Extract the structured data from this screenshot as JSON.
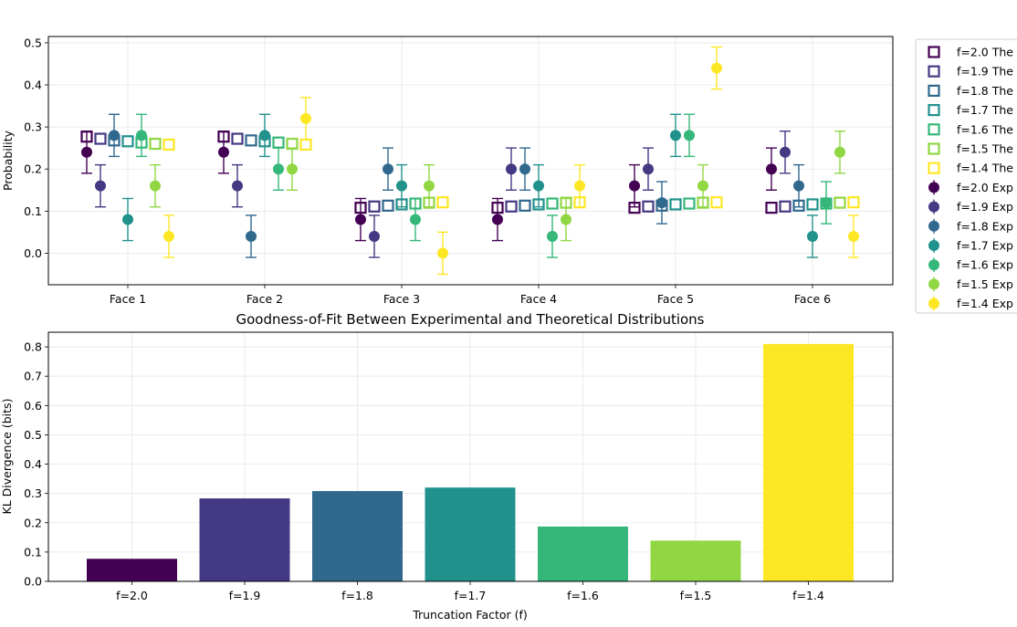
{
  "colors": {
    "f=2.0": "#440154",
    "f=1.9": "#443983",
    "f=1.8": "#31688e",
    "f=1.7": "#21918c",
    "f=1.6": "#35b779",
    "f=1.5": "#90d743",
    "f=1.4": "#fde725"
  },
  "chart_data": [
    {
      "type": "scatter",
      "title": "",
      "xlabel": "",
      "ylabel": "Probability",
      "categories": [
        "Face 1",
        "Face 2",
        "Face 3",
        "Face 4",
        "Face 5",
        "Face 6"
      ],
      "ylim": [
        -0.075,
        0.515
      ],
      "yticks": [
        "0.0",
        "0.1",
        "0.2",
        "0.3",
        "0.4",
        "0.5"
      ],
      "grid": true,
      "legend_position": "outside right",
      "theoretical_series": [
        {
          "name": "f=2.0 The",
          "factor": "f=2.0",
          "values": [
            0.277,
            0.277,
            0.108,
            0.108,
            0.108,
            0.108
          ]
        },
        {
          "name": "f=1.9 The",
          "factor": "f=1.9",
          "values": [
            0.272,
            0.272,
            0.111,
            0.111,
            0.111,
            0.111
          ]
        },
        {
          "name": "f=1.8 The",
          "factor": "f=1.8",
          "values": [
            0.268,
            0.268,
            0.113,
            0.113,
            0.113,
            0.113
          ]
        },
        {
          "name": "f=1.7 The",
          "factor": "f=1.7",
          "values": [
            0.266,
            0.266,
            0.116,
            0.116,
            0.116,
            0.116
          ]
        },
        {
          "name": "f=1.6 The",
          "factor": "f=1.6",
          "values": [
            0.263,
            0.263,
            0.118,
            0.118,
            0.118,
            0.118
          ]
        },
        {
          "name": "f=1.5 The",
          "factor": "f=1.5",
          "values": [
            0.26,
            0.26,
            0.12,
            0.12,
            0.12,
            0.12
          ]
        },
        {
          "name": "f=1.4 The",
          "factor": "f=1.4",
          "values": [
            0.258,
            0.258,
            0.121,
            0.121,
            0.121,
            0.121
          ]
        }
      ],
      "experimental_series": [
        {
          "name": "f=2.0 Exp",
          "factor": "f=2.0",
          "values": [
            0.24,
            0.24,
            0.08,
            0.08,
            0.16,
            0.2
          ],
          "error": 0.05
        },
        {
          "name": "f=1.9 Exp",
          "factor": "f=1.9",
          "values": [
            0.16,
            0.16,
            0.04,
            0.2,
            0.2,
            0.24
          ],
          "error": 0.05
        },
        {
          "name": "f=1.8 Exp",
          "factor": "f=1.8",
          "values": [
            0.28,
            0.04,
            0.2,
            0.2,
            0.12,
            0.16
          ],
          "error": 0.05
        },
        {
          "name": "f=1.7 Exp",
          "factor": "f=1.7",
          "values": [
            0.08,
            0.28,
            0.16,
            0.16,
            0.28,
            0.04
          ],
          "error": 0.05
        },
        {
          "name": "f=1.6 Exp",
          "factor": "f=1.6",
          "values": [
            0.28,
            0.2,
            0.08,
            0.04,
            0.28,
            0.12
          ],
          "error": 0.05
        },
        {
          "name": "f=1.5 Exp",
          "factor": "f=1.5",
          "values": [
            0.16,
            0.2,
            0.16,
            0.08,
            0.16,
            0.24
          ],
          "error": 0.05
        },
        {
          "name": "f=1.4 Exp",
          "factor": "f=1.4",
          "values": [
            0.04,
            0.32,
            0.0,
            0.16,
            0.44,
            0.04
          ],
          "error": 0.05
        }
      ]
    },
    {
      "type": "bar",
      "title": "Goodness-of-Fit Between Experimental and Theoretical Distributions",
      "xlabel": "Truncation Factor (f)",
      "ylabel": "KL Divergence (bits)",
      "categories": [
        "f=2.0",
        "f=1.9",
        "f=1.8",
        "f=1.7",
        "f=1.6",
        "f=1.5",
        "f=1.4"
      ],
      "values": [
        0.077,
        0.283,
        0.308,
        0.32,
        0.187,
        0.139,
        0.81
      ],
      "ylim": [
        0,
        0.85
      ],
      "yticks": [
        "0.0",
        "0.1",
        "0.2",
        "0.3",
        "0.4",
        "0.5",
        "0.6",
        "0.7",
        "0.8"
      ],
      "grid": true
    }
  ]
}
